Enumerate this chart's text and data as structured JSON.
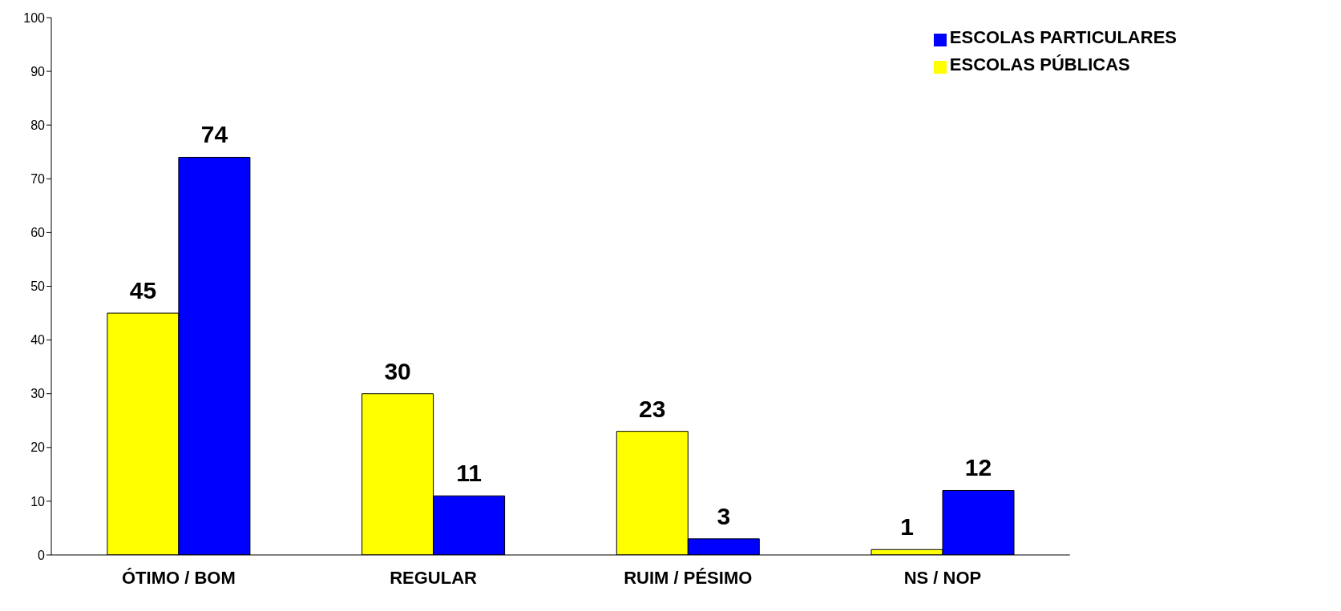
{
  "chart_data": {
    "type": "bar",
    "categories": [
      "ÓTIMO / BOM",
      "REGULAR",
      "RUIM / PÉSIMO",
      "NS / NOP"
    ],
    "series": [
      {
        "name": "ESCOLAS PÚBLICAS",
        "color": "#ffff00",
        "values": [
          45,
          30,
          23,
          1
        ]
      },
      {
        "name": "ESCOLAS PARTICULARES",
        "color": "#0000ff",
        "values": [
          74,
          11,
          3,
          12
        ]
      }
    ],
    "ylim": [
      0,
      100
    ],
    "yticks": [
      0,
      10,
      20,
      30,
      40,
      50,
      60,
      70,
      80,
      90,
      100
    ],
    "grid": false,
    "legend": "top right",
    "data_labels": true
  }
}
